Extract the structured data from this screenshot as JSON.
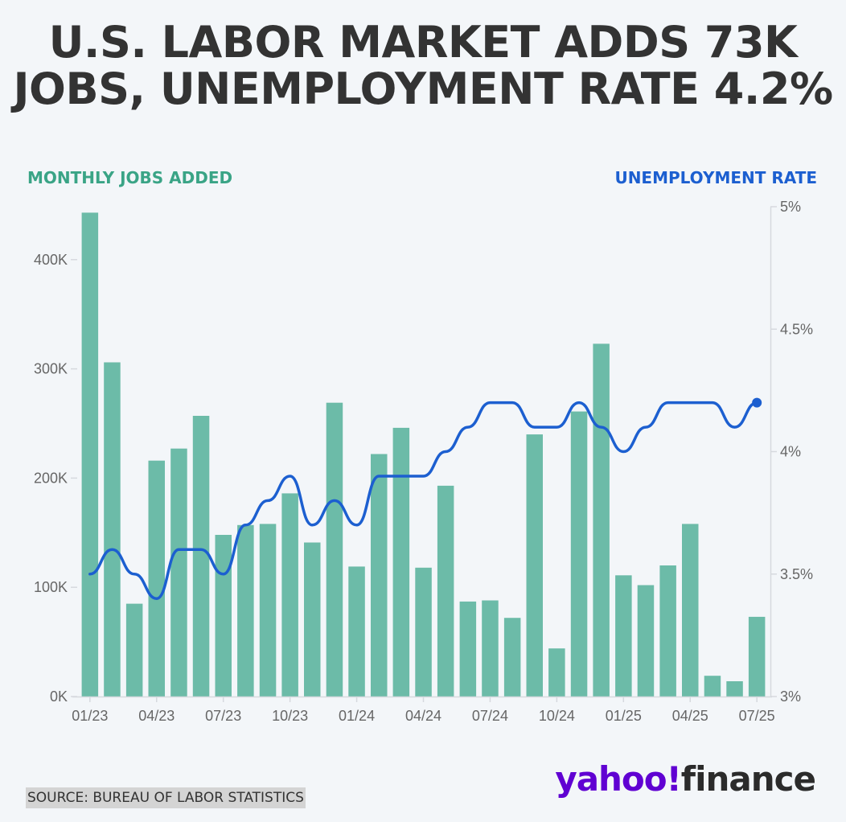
{
  "title_lines": [
    "U.S. LABOR MARKET ADDS 73K",
    "JOBS, UNEMPLOYMENT RATE 4.2%"
  ],
  "source": "SOURCE: BUREAU OF LABOR STATISTICS",
  "logo": {
    "part1": "yahoo!",
    "part2": "finance"
  },
  "colors": {
    "bars": "#6cbba8",
    "line": "#1c5fd0",
    "left_title": "#3aa486",
    "right_title": "#1c5fd0",
    "grid": "#d6d9de"
  },
  "chart_data": {
    "type": "bar",
    "categories": [
      "01/23",
      "02/23",
      "03/23",
      "04/23",
      "05/23",
      "06/23",
      "07/23",
      "08/23",
      "09/23",
      "10/23",
      "11/23",
      "12/23",
      "01/24",
      "02/24",
      "03/24",
      "04/24",
      "05/24",
      "06/24",
      "07/24",
      "08/24",
      "09/24",
      "10/24",
      "11/24",
      "12/24",
      "01/25",
      "02/25",
      "03/25",
      "04/25",
      "05/25",
      "06/25",
      "07/25"
    ],
    "x_tick_labels": [
      "01/23",
      "04/23",
      "07/23",
      "10/23",
      "01/24",
      "04/24",
      "07/24",
      "10/24",
      "01/25",
      "04/25",
      "07/25"
    ],
    "x_tick_indices": [
      0,
      3,
      6,
      9,
      12,
      15,
      18,
      21,
      24,
      27,
      30
    ],
    "series": [
      {
        "name": "MONTHLY JOBS ADDED",
        "axis": "left",
        "type": "bar",
        "values": [
          443,
          306,
          85,
          216,
          227,
          257,
          148,
          157,
          158,
          186,
          141,
          269,
          119,
          222,
          246,
          118,
          193,
          87,
          88,
          72,
          240,
          44,
          261,
          323,
          111,
          102,
          120,
          158,
          19,
          14,
          73
        ]
      },
      {
        "name": "UNEMPLOYMENT RATE",
        "axis": "right",
        "type": "line",
        "values": [
          3.5,
          3.6,
          3.5,
          3.4,
          3.6,
          3.6,
          3.5,
          3.7,
          3.8,
          3.9,
          3.7,
          3.8,
          3.7,
          3.9,
          3.9,
          3.9,
          4.0,
          4.1,
          4.2,
          4.2,
          4.1,
          4.1,
          4.2,
          4.1,
          4.0,
          4.1,
          4.2,
          4.2,
          4.2,
          4.1,
          4.2
        ]
      }
    ],
    "left_axis": {
      "title": "MONTHLY JOBS ADDED",
      "unit": "thousands",
      "ticks": [
        0,
        100,
        200,
        300,
        400
      ],
      "tick_labels": [
        "0K",
        "100K",
        "200K",
        "300K",
        "400K"
      ],
      "ylim": [
        0,
        450
      ]
    },
    "right_axis": {
      "title": "UNEMPLOYMENT RATE",
      "ticks": [
        3,
        3.5,
        4,
        4.5,
        5
      ],
      "tick_labels": [
        "3%",
        "3.5%",
        "4%",
        "4.5%",
        "5%"
      ],
      "ylim": [
        3,
        5
      ]
    },
    "grid": false,
    "legend": "none"
  }
}
